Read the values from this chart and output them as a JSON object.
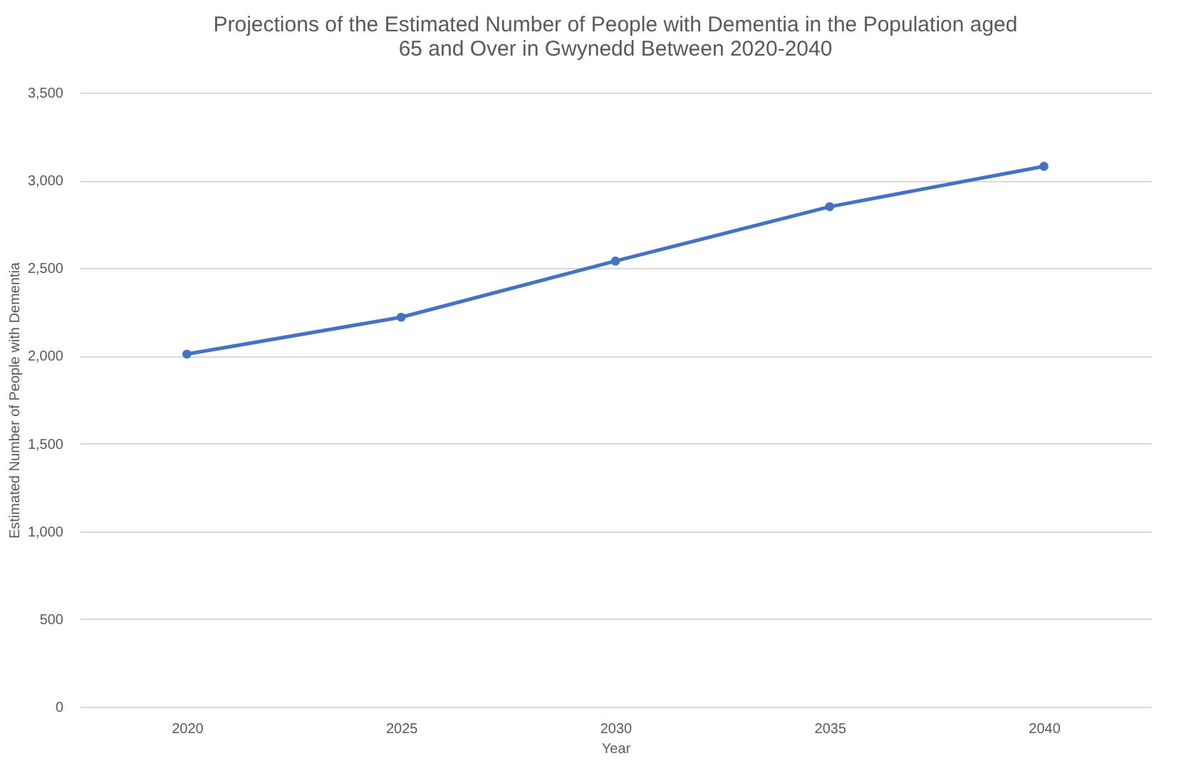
{
  "chart_data": {
    "type": "line",
    "title": "Projections of the Estimated Number of People with Dementia in the Population aged 65 and Over in Gwynedd Between 2020-2040",
    "xlabel": "Year",
    "ylabel": "Estimated Number of People with Dementia",
    "categories": [
      "2020",
      "2025",
      "2030",
      "2035",
      "2040"
    ],
    "series": [
      {
        "color": "#4472c4",
        "values": [
          2010,
          2220,
          2540,
          2850,
          3080
        ]
      }
    ],
    "ylim": [
      0,
      3500
    ],
    "yticks": [
      0,
      500,
      {
        "value": 1000,
        "label": "1,000"
      },
      {
        "value": 1500,
        "label": "1,500"
      },
      {
        "value": 2000,
        "label": "2,000"
      },
      {
        "value": 2500,
        "label": "2,500"
      },
      {
        "value": 3000,
        "label": "3,000"
      },
      {
        "value": 3500,
        "label": "3,500"
      }
    ],
    "grid": "y",
    "marker": "circle",
    "line_style": "solid",
    "legend": false
  }
}
